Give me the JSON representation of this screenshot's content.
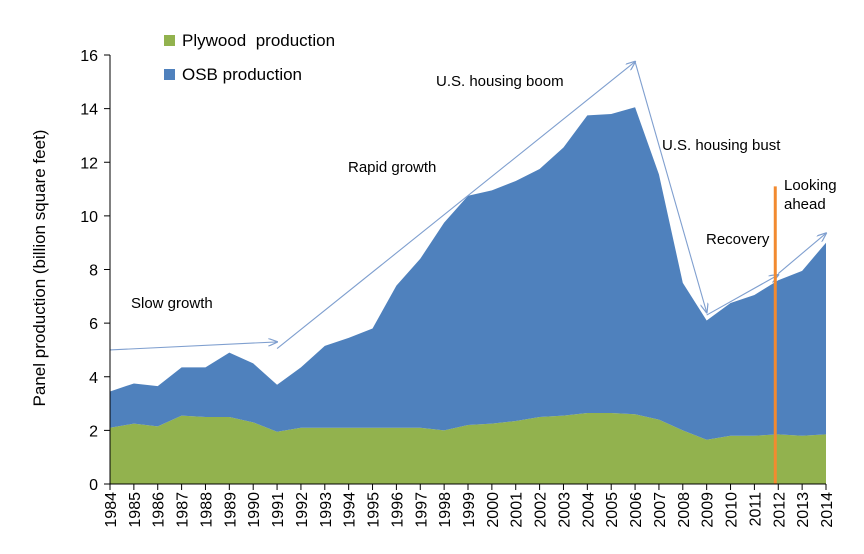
{
  "chart_data": {
    "type": "area",
    "stacked": true,
    "ylabel": "Panel production (billion square feet)",
    "xlabel": "",
    "ylim": [
      0,
      16
    ],
    "yticks": [
      0,
      2,
      4,
      6,
      8,
      10,
      12,
      14,
      16
    ],
    "grid": false,
    "legend_position": "top-left",
    "categories": [
      "1984",
      "1985",
      "1986",
      "1987",
      "1988",
      "1989",
      "1990",
      "1991",
      "1992",
      "1993",
      "1994",
      "1995",
      "1996",
      "1997",
      "1998",
      "1999",
      "2000",
      "2001",
      "2002",
      "2003",
      "2004",
      "2005",
      "2006",
      "2007",
      "2008",
      "2009",
      "2010",
      "2011",
      "2012",
      "2013",
      "2014"
    ],
    "series": [
      {
        "name": "Plywood  production",
        "color": "#92b24e",
        "values": [
          2.1,
          2.25,
          2.15,
          2.55,
          2.5,
          2.5,
          2.3,
          1.95,
          2.1,
          2.1,
          2.1,
          2.1,
          2.1,
          2.1,
          2.0,
          2.2,
          2.25,
          2.35,
          2.5,
          2.55,
          2.65,
          2.65,
          2.6,
          2.4,
          2.0,
          1.65,
          1.8,
          1.8,
          1.85,
          1.8,
          1.85
        ]
      },
      {
        "name": "OSB production",
        "color": "#4f81bd",
        "values": [
          1.35,
          1.5,
          1.5,
          1.8,
          1.85,
          2.4,
          2.2,
          1.75,
          2.25,
          3.05,
          3.35,
          3.7,
          5.3,
          6.3,
          7.75,
          8.55,
          8.7,
          8.95,
          9.25,
          10.0,
          11.1,
          11.15,
          11.45,
          9.15,
          5.5,
          4.45,
          4.95,
          5.25,
          5.75,
          6.15,
          7.15
        ]
      }
    ],
    "annotations": [
      {
        "id": "slow",
        "text": "Slow growth"
      },
      {
        "id": "rapid",
        "text": "Rapid growth"
      },
      {
        "id": "boom",
        "text": "U.S. housing boom"
      },
      {
        "id": "bust",
        "text": "U.S. housing bust"
      },
      {
        "id": "recovery",
        "text": "Recovery"
      },
      {
        "id": "ahead",
        "lines": [
          "Looking",
          "ahead"
        ]
      }
    ],
    "trend_arrows": [
      {
        "from": [
          1984,
          5.0
        ],
        "to": [
          1991,
          5.3
        ]
      },
      {
        "from": [
          1991,
          5.05
        ],
        "to": [
          2006,
          15.75
        ]
      },
      {
        "from": [
          2006,
          15.75
        ],
        "to": [
          2009,
          6.4
        ]
      },
      {
        "from": [
          2009,
          6.3
        ],
        "to": [
          2012,
          7.8
        ]
      },
      {
        "from": [
          2012,
          7.85
        ],
        "to": [
          2014,
          9.35
        ]
      }
    ],
    "marker_line": {
      "year": 2012,
      "color": "#f28a30"
    },
    "colors": {
      "arrow": "#7f9fcf",
      "axis": "#000000"
    }
  }
}
